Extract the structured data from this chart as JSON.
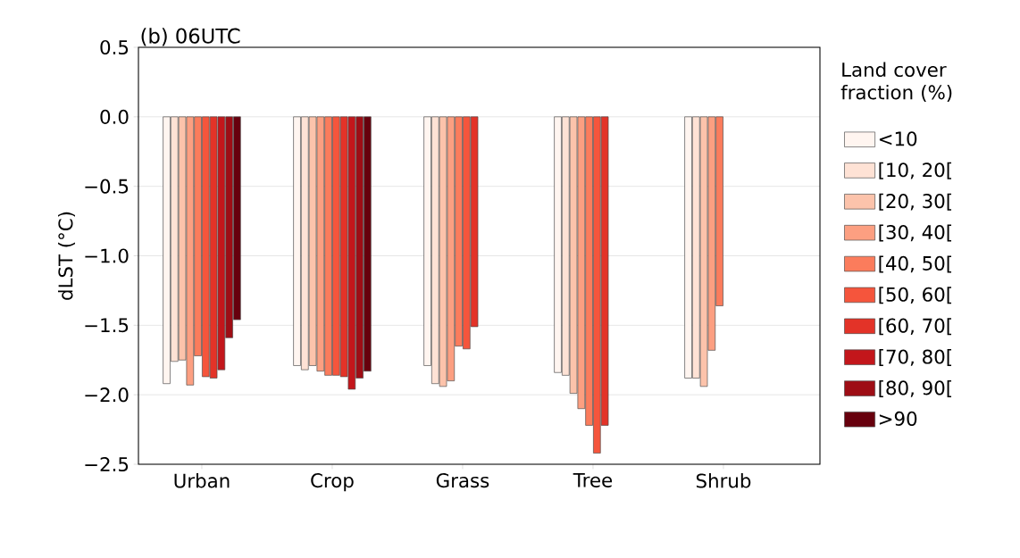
{
  "chart_data": {
    "type": "bar",
    "title": "(b) 06UTC",
    "ylabel": "dLST (°C)",
    "legend_title": "Land cover fraction (%)",
    "categories": [
      "Urban",
      "Crop",
      "Grass",
      "Tree",
      "Shrub"
    ],
    "series": [
      {
        "name": "<10",
        "color": "#fff5f0",
        "values": [
          -1.92,
          -1.79,
          -1.79,
          -1.84,
          -1.88
        ]
      },
      {
        "name": "[10, 20[",
        "color": "#fee2d5",
        "values": [
          -1.76,
          -1.82,
          -1.92,
          -1.86,
          -1.88
        ]
      },
      {
        "name": "[20, 30[",
        "color": "#fcc3ab",
        "values": [
          -1.75,
          -1.79,
          -1.94,
          -1.99,
          -1.94
        ]
      },
      {
        "name": "[30, 40[",
        "color": "#fc9f81",
        "values": [
          -1.93,
          -1.83,
          -1.9,
          -2.1,
          -1.68
        ]
      },
      {
        "name": "[40, 50[",
        "color": "#fb7c5c",
        "values": [
          -1.72,
          -1.86,
          -1.65,
          -2.22,
          -1.36
        ]
      },
      {
        "name": "[50, 60[",
        "color": "#f5553c",
        "values": [
          -1.87,
          -1.86,
          -1.67,
          -2.42,
          null
        ]
      },
      {
        "name": "[60, 70[",
        "color": "#e33328",
        "values": [
          -1.88,
          -1.87,
          -1.51,
          -2.22,
          null
        ]
      },
      {
        "name": "[70, 80[",
        "color": "#c3161b",
        "values": [
          -1.82,
          -1.96,
          null,
          null,
          null
        ]
      },
      {
        "name": "[80, 90[",
        "color": "#9e0d15",
        "values": [
          -1.59,
          -1.88,
          null,
          null,
          null
        ]
      },
      {
        "name": ">90",
        "color": "#67000d",
        "values": [
          -1.46,
          -1.83,
          null,
          null,
          null
        ]
      }
    ],
    "ylim": [
      -2.5,
      0.5
    ],
    "yticks": [
      {
        "value": -2.5,
        "label": "−2.5"
      },
      {
        "value": -2.0,
        "label": "−2.0"
      },
      {
        "value": -1.5,
        "label": "−1.5"
      },
      {
        "value": -1.0,
        "label": "−1.0"
      },
      {
        "value": -0.5,
        "label": "−0.5"
      },
      {
        "value": 0.0,
        "label": "0.0"
      },
      0.5
    ],
    "grid": "y",
    "legend": "right"
  }
}
